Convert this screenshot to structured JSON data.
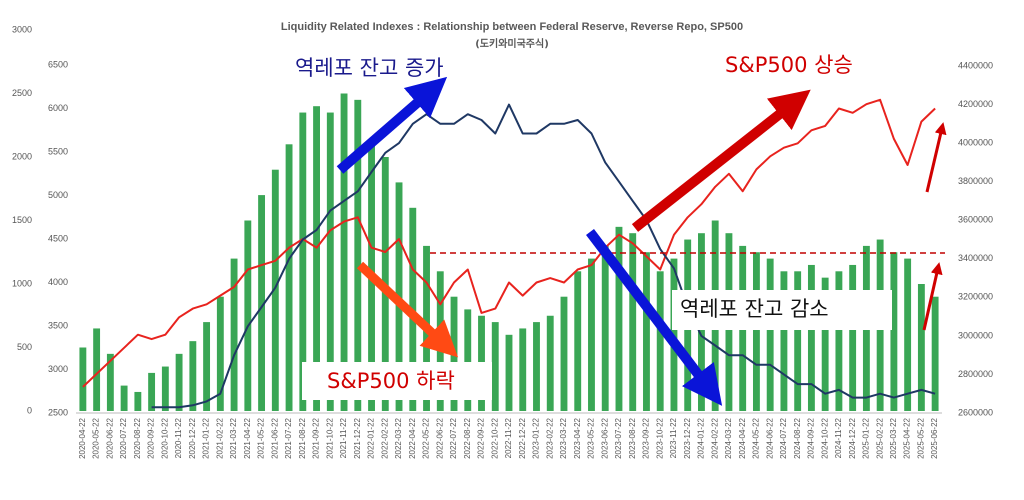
{
  "chart_data": {
    "type": "bar-line",
    "title": "Liquidity Related Indexes : Relationship between Federal Reserve, Reverse Repo, SP500",
    "subtitle": "(도키와미국주식)",
    "categories": [
      "2020-04-22",
      "2020-05-22",
      "2020-06-22",
      "2020-07-22",
      "2020-08-22",
      "2020-09-22",
      "2020-10-22",
      "2020-11-22",
      "2020-12-22",
      "2021-01-22",
      "2021-02-22",
      "2021-03-22",
      "2021-04-22",
      "2021-05-22",
      "2021-06-22",
      "2021-07-22",
      "2021-08-22",
      "2021-09-22",
      "2021-10-22",
      "2021-11-22",
      "2021-12-22",
      "2022-01-22",
      "2022-02-22",
      "2022-03-22",
      "2022-04-22",
      "2022-05-22",
      "2022-06-22",
      "2022-07-22",
      "2022-08-22",
      "2022-09-22",
      "2022-10-22",
      "2022-11-22",
      "2022-12-22",
      "2023-01-22",
      "2023-02-22",
      "2023-03-22",
      "2023-04-22",
      "2023-05-22",
      "2023-06-22",
      "2023-07-22",
      "2023-08-22",
      "2023-09-22",
      "2023-10-22",
      "2023-11-22",
      "2023-12-22",
      "2024-01-22",
      "2024-02-22",
      "2024-03-22",
      "2024-04-22",
      "2024-05-22",
      "2024-06-22",
      "2024-07-22",
      "2024-08-22",
      "2024-09-22",
      "2024-10-22",
      "2024-11-22",
      "2024-12-22",
      "2025-01-22",
      "2025-02-22",
      "2025-03-22",
      "2025-04-22",
      "2025-05-22",
      "2025-06-22"
    ],
    "series": [
      {
        "type": "bar",
        "axis": "y",
        "color": "#3aa655",
        "values": [
          500,
          650,
          450,
          200,
          150,
          300,
          350,
          450,
          550,
          700,
          900,
          1200,
          1500,
          1700,
          1900,
          2100,
          2350,
          2400,
          2350,
          2500,
          2450,
          2100,
          2000,
          1800,
          1600,
          1300,
          1100,
          900,
          800,
          750,
          700,
          600,
          650,
          700,
          750,
          900,
          1100,
          1200,
          1300,
          1450,
          1400,
          1250,
          1100,
          1200,
          1350,
          1400,
          1500,
          1400,
          1300,
          1250,
          1200,
          1100,
          1100,
          1150,
          1050,
          1100,
          1150,
          1300,
          1350,
          1250,
          1200,
          1000,
          900
        ]
      },
      {
        "type": "line",
        "axis": "y3",
        "color": "#e8231e",
        "values": [
          2800,
          2950,
          3100,
          3250,
          3400,
          3350,
          3400,
          3600,
          3700,
          3750,
          3850,
          3950,
          4150,
          4200,
          4250,
          4400,
          4500,
          4400,
          4600,
          4700,
          4750,
          4400,
          4350,
          4500,
          4150,
          4000,
          3750,
          4000,
          4150,
          3650,
          3700,
          4000,
          3850,
          4000,
          4050,
          4000,
          4150,
          4200,
          4400,
          4550,
          4450,
          4300,
          4150,
          4550,
          4750,
          4900,
          5100,
          5250,
          5050,
          5300,
          5450,
          5550,
          5600,
          5750,
          5800,
          6000,
          5950,
          6050,
          6100,
          5650,
          5350,
          5850,
          6000
        ]
      },
      {
        "type": "line",
        "axis": "y2",
        "color": "#1f3864",
        "values": [
          null,
          null,
          null,
          null,
          null,
          2630000,
          2630000,
          2630000,
          2640000,
          2660000,
          2700000,
          2900000,
          3050000,
          3150000,
          3250000,
          3400000,
          3500000,
          3550000,
          3650000,
          3700000,
          3750000,
          3850000,
          3950000,
          4000000,
          4100000,
          4150000,
          4100000,
          4100000,
          4150000,
          4120000,
          4050000,
          4200000,
          4050000,
          4050000,
          4100000,
          4100000,
          4120000,
          4050000,
          3900000,
          3800000,
          3700000,
          3600000,
          3450000,
          3350000,
          3150000,
          3000000,
          2950000,
          2900000,
          2900000,
          2850000,
          2850000,
          2800000,
          2750000,
          2750000,
          2700000,
          2720000,
          2680000,
          2680000,
          2700000,
          2680000,
          2700000,
          2720000,
          2700000
        ]
      }
    ],
    "ylim": [
      0,
      3000
    ],
    "yticks": [
      0,
      500,
      1000,
      1500,
      2000,
      2500,
      3000
    ],
    "y3lim": [
      2500,
      6500
    ],
    "y3ticks": [
      2500,
      3000,
      3500,
      4000,
      4500,
      5000,
      5500,
      6000,
      6500
    ],
    "y2lim": [
      2600000,
      4400000
    ],
    "y2ticks": [
      2600000,
      2800000,
      3000000,
      3200000,
      3400000,
      3600000,
      3800000,
      4000000,
      4200000,
      4400000
    ],
    "reference_line": {
      "axis": "y2",
      "value": 3430000,
      "color": "#c00000"
    },
    "annotations": [
      "역레포 잔고 증가",
      "S&P500 상승",
      "S&P500 하락",
      "역레포 잔고 감소"
    ]
  }
}
